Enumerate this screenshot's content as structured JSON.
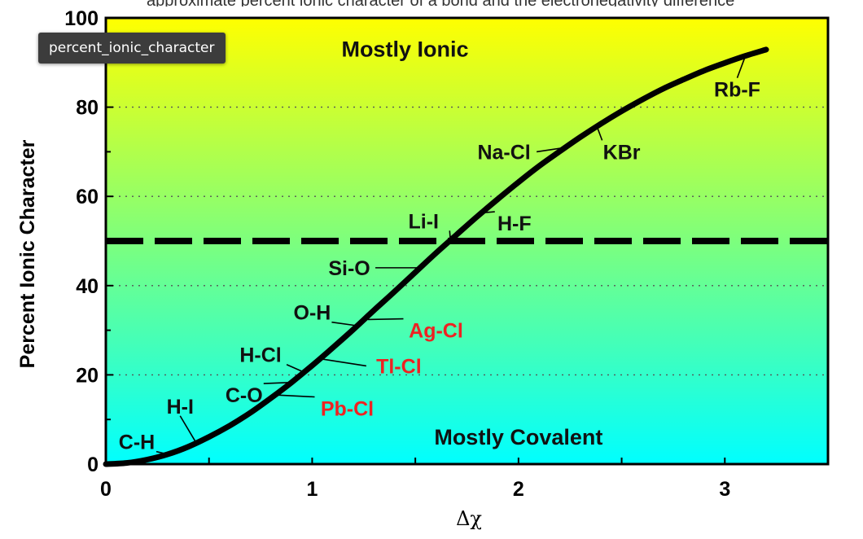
{
  "tooltip": {
    "text": "percent_ionic_character"
  },
  "top_fragment": "approximate percent ionic character of a bond and the electronegativity difference",
  "chart_data": {
    "type": "line",
    "title": "",
    "xlabel": "Δχ",
    "ylabel": "Percent Ionic Character",
    "xlim": [
      0,
      3.5
    ],
    "ylim": [
      0,
      100
    ],
    "xticks": [
      0,
      1,
      2,
      3
    ],
    "yticks": [
      0,
      20,
      40,
      60,
      80,
      100
    ],
    "grid": "dotted horizontal at 20, 40, 60, 80",
    "background": "vertical gradient from yellow (#ffff00) at top to cyan (#00ffff) at bottom",
    "colors": {
      "curve": "#000000",
      "red_label": "#ee2222",
      "black_label": "#111111"
    },
    "series": [
      {
        "x": [
          0,
          0.1,
          0.2,
          0.3,
          0.4,
          0.5,
          0.6,
          0.7,
          0.8,
          0.9,
          1.0,
          1.1,
          1.2,
          1.3,
          1.4,
          1.5,
          1.6,
          1.7,
          1.8,
          1.9,
          2.0,
          2.1,
          2.2,
          2.3,
          2.4,
          2.5,
          2.6,
          2.7,
          2.8,
          2.9,
          3.0,
          3.1,
          3.2
        ],
        "y": [
          0,
          0.25,
          1,
          2.2,
          3.9,
          6.1,
          8.6,
          11.5,
          14.8,
          18.3,
          22.1,
          26.1,
          30.2,
          34.5,
          38.7,
          43,
          47.3,
          51.4,
          55.5,
          59.4,
          63.2,
          66.8,
          70.1,
          73.3,
          76.3,
          79.1,
          81.7,
          84.1,
          86.2,
          88.2,
          89.9,
          91.5,
          92.9
        ]
      }
    ],
    "reference_line": {
      "y": 50,
      "style": "dashed"
    },
    "region_labels": [
      {
        "text": "Mostly Ionic",
        "x": 1.45,
        "y": 93
      },
      {
        "text": "Mostly Covalent",
        "x": 2.0,
        "y": 6
      }
    ],
    "annotations": [
      {
        "text": "C-H",
        "x": 0.15,
        "y": 5,
        "color": "black",
        "point": [
          0.3,
          2.2
        ]
      },
      {
        "text": "H-I",
        "x": 0.36,
        "y": 13,
        "color": "black",
        "point": [
          0.44,
          4.6
        ]
      },
      {
        "text": "C-O",
        "x": 0.67,
        "y": 15.5,
        "color": "black",
        "point": [
          0.9,
          18.3
        ]
      },
      {
        "text": "H-Cl",
        "x": 0.75,
        "y": 24.5,
        "color": "black",
        "point": [
          0.96,
          20.6
        ]
      },
      {
        "text": "O-H",
        "x": 1.0,
        "y": 34,
        "color": "black",
        "point": [
          1.22,
          31
        ]
      },
      {
        "text": "Si-O",
        "x": 1.18,
        "y": 44,
        "color": "black",
        "point": [
          1.53,
          44
        ]
      },
      {
        "text": "Li-I",
        "x": 1.54,
        "y": 54.5,
        "color": "black",
        "point": [
          1.67,
          50.3
        ]
      },
      {
        "text": "Na-Cl",
        "x": 1.93,
        "y": 70,
        "color": "black",
        "point": [
          2.22,
          70.9
        ]
      },
      {
        "text": "Pb-Cl",
        "x": 1.17,
        "y": 12.5,
        "color": "red",
        "point": [
          0.82,
          15.5
        ]
      },
      {
        "text": "Tl-Cl",
        "x": 1.42,
        "y": 22,
        "color": "red",
        "point": [
          1.04,
          23.6
        ]
      },
      {
        "text": "Ag-Cl",
        "x": 1.6,
        "y": 30,
        "color": "red",
        "point": [
          1.27,
          32.4
        ]
      },
      {
        "text": "H-F",
        "x": 1.98,
        "y": 54,
        "color": "black",
        "point": [
          1.82,
          56.3
        ]
      },
      {
        "text": "KBr",
        "x": 2.5,
        "y": 70,
        "color": "black",
        "point": [
          2.38,
          75.7
        ]
      },
      {
        "text": "Rb-F",
        "x": 3.06,
        "y": 84,
        "color": "black",
        "point": [
          3.1,
          91.5
        ]
      }
    ]
  }
}
